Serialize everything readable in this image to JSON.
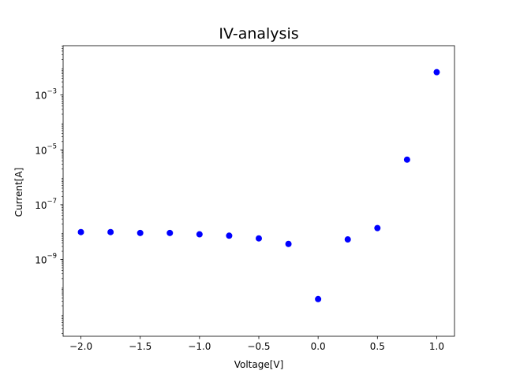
{
  "chart_data": {
    "type": "scatter",
    "title": "IV-analysis",
    "xlabel": "Voltage[V]",
    "ylabel": "Current[A]",
    "xlim": [
      -2.15,
      1.15
    ],
    "ylim_log10": [
      -11.8,
      -1.2
    ],
    "y_scale": "log",
    "grid": false,
    "marker_color": "#0000ff",
    "x_ticks": [
      -2.0,
      -1.5,
      -1.0,
      -0.5,
      0.0,
      0.5,
      1.0
    ],
    "x_tick_labels": [
      "−2.0",
      "−1.5",
      "−1.0",
      "−0.5",
      "0.0",
      "0.5",
      "1.0"
    ],
    "y_ticks": [
      {
        "exp": -9,
        "base": "10",
        "exponent": "−9"
      },
      {
        "exp": -7,
        "base": "10",
        "exponent": "−7"
      },
      {
        "exp": -5,
        "base": "10",
        "exponent": "−5"
      },
      {
        "exp": -3,
        "base": "10",
        "exponent": "−3"
      }
    ],
    "x": [
      -2.0,
      -1.75,
      -1.5,
      -1.25,
      -1.0,
      -0.75,
      -0.5,
      -0.25,
      0.0,
      0.25,
      0.5,
      0.75,
      1.0
    ],
    "y": [
      1e-08,
      1e-08,
      9.3e-09,
      9.3e-09,
      8.3e-09,
      7.4e-09,
      5.9e-09,
      3.7e-09,
      3.6e-11,
      5.4e-09,
      1.4e-08,
      4.4e-06,
      0.0068
    ]
  }
}
